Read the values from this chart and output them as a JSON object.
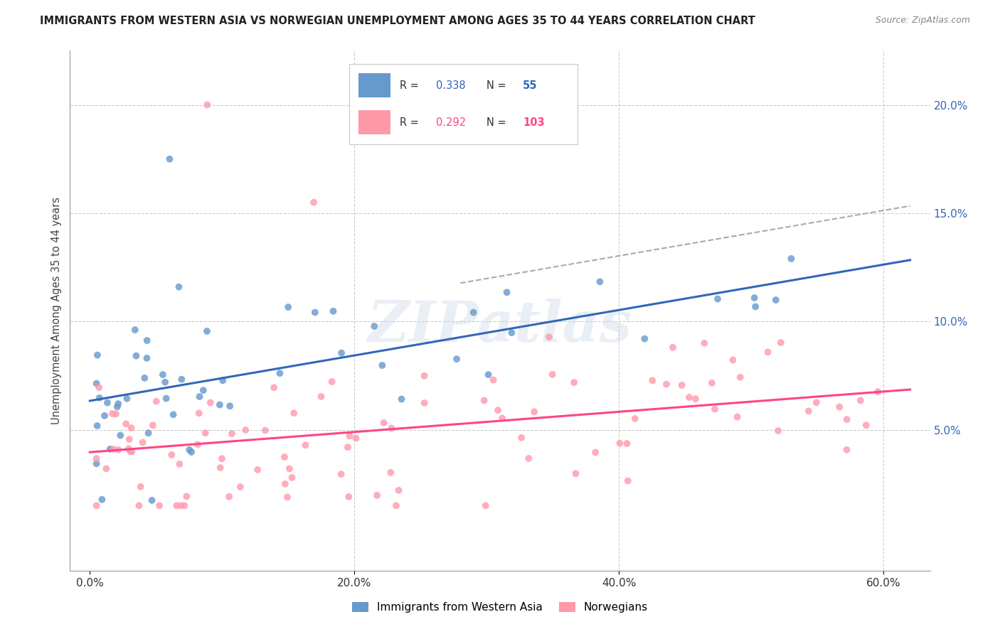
{
  "title": "IMMIGRANTS FROM WESTERN ASIA VS NORWEGIAN UNEMPLOYMENT AMONG AGES 35 TO 44 YEARS CORRELATION CHART",
  "source": "Source: ZipAtlas.com",
  "ylabel": "Unemployment Among Ages 35 to 44 years",
  "legend_label1": "Immigrants from Western Asia",
  "legend_label2": "Norwegians",
  "R1": "0.338",
  "N1": "55",
  "R2": "0.292",
  "N2": "103",
  "color1": "#6699CC",
  "color2": "#FF99AA",
  "line_color1": "#3366BB",
  "line_color2": "#FF4488",
  "watermark": "ZIPatlas",
  "x_tick_vals": [
    0.0,
    0.2,
    0.4,
    0.6
  ],
  "y_tick_vals": [
    0.05,
    0.1,
    0.15,
    0.2
  ],
  "xlim": [
    -0.015,
    0.635
  ],
  "ylim": [
    -0.015,
    0.225
  ]
}
